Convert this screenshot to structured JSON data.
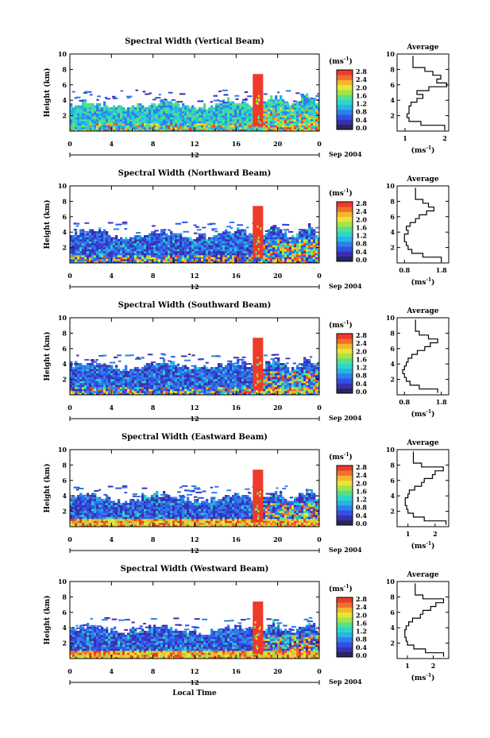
{
  "colors": {
    "background": "#ffffff",
    "axis": "#000000",
    "colorbar": [
      "#27285a",
      "#3a2fb0",
      "#3050e8",
      "#2f7fe8",
      "#27b4e6",
      "#2fd6c6",
      "#56e08a",
      "#a6e34a",
      "#e6e636",
      "#f5b62c",
      "#f2702a",
      "#ee3a2a"
    ]
  },
  "chart_data": [
    {
      "type": "heatmap",
      "title": "Spectral Width (Vertical Beam)",
      "ylabel": "Height (km)",
      "xlabel": "",
      "x_ticks": [
        "0",
        "4",
        "8",
        "12",
        "16",
        "20",
        "0"
      ],
      "y_ticks": [
        "10",
        "8",
        "6",
        "4",
        "2"
      ],
      "xlim": [
        0,
        24
      ],
      "ylim": [
        0,
        10
      ],
      "date_marker": "12",
      "date_label": "Sep 2004",
      "colorbar_unit": "(ms",
      "colorbar_unit_exp": "-1",
      "colorbar_unit_close": ")",
      "colorbar_ticks": [
        "2.8",
        "2.4",
        "2.0",
        "1.6",
        "1.2",
        "0.8",
        "0.4",
        "0.0"
      ],
      "colorbar_range": [
        0,
        2.8
      ],
      "profile": {
        "title": "Average",
        "x_ticks": [
          "1",
          "2"
        ],
        "xlim": [
          0.8,
          2.1
        ],
        "y_ticks": [
          "10",
          "8",
          "6",
          "4",
          "2"
        ],
        "xlabel": "(ms",
        "xlabel_exp": "-1",
        "xlabel_close": ")",
        "heights": [
          0.5,
          1.0,
          1.5,
          2.0,
          2.5,
          3.0,
          3.5,
          4.0,
          4.5,
          5.0,
          5.5,
          6.0,
          6.5,
          7.0,
          7.5,
          8.0,
          8.5,
          9.0,
          9.5
        ],
        "values": [
          2.0,
          1.4,
          1.1,
          1.05,
          1.1,
          1.1,
          1.15,
          1.3,
          1.45,
          1.3,
          1.6,
          2.05,
          1.8,
          1.9,
          1.7,
          1.5,
          1.2,
          1.2,
          1.2
        ]
      }
    },
    {
      "type": "heatmap",
      "title": "Spectral Width (Northward Beam)",
      "ylabel": "Height (km)",
      "xlabel": "",
      "x_ticks": [
        "0",
        "4",
        "8",
        "12",
        "16",
        "20",
        "0"
      ],
      "y_ticks": [
        "10",
        "8",
        "6",
        "4",
        "2"
      ],
      "xlim": [
        0,
        24
      ],
      "ylim": [
        0,
        10
      ],
      "date_marker": "12",
      "date_label": "Sep 2004",
      "colorbar_unit": "(ms",
      "colorbar_unit_exp": "-1",
      "colorbar_unit_close": ")",
      "colorbar_ticks": [
        "2.8",
        "2.4",
        "2.0",
        "1.6",
        "1.2",
        "0.8",
        "0.4",
        "0.0"
      ],
      "colorbar_range": [
        0,
        2.8
      ],
      "profile": {
        "title": "Average",
        "x_ticks": [
          "0.8",
          "1.8"
        ],
        "xlim": [
          0.6,
          2.0
        ],
        "y_ticks": [
          "10",
          "8",
          "6",
          "4",
          "2"
        ],
        "xlabel": "(ms",
        "xlabel_exp": "-1",
        "xlabel_close": ")",
        "heights": [
          0.5,
          1.0,
          1.5,
          2.0,
          2.5,
          3.0,
          3.5,
          4.0,
          4.5,
          5.0,
          5.5,
          6.0,
          6.5,
          7.0,
          7.5,
          8.0,
          8.5,
          9.0,
          9.5
        ],
        "values": [
          1.8,
          1.3,
          1.0,
          0.9,
          0.85,
          0.8,
          0.8,
          0.9,
          0.85,
          0.95,
          1.1,
          1.2,
          1.4,
          1.6,
          1.45,
          1.3,
          1.1,
          1.1,
          1.1
        ]
      }
    },
    {
      "type": "heatmap",
      "title": "Spectral Width (Southward Beam)",
      "ylabel": "Height (km)",
      "xlabel": "",
      "x_ticks": [
        "0",
        "4",
        "8",
        "12",
        "16",
        "20",
        "0"
      ],
      "y_ticks": [
        "10",
        "8",
        "6",
        "4",
        "2"
      ],
      "xlim": [
        0,
        24
      ],
      "ylim": [
        0,
        10
      ],
      "date_marker": "12",
      "date_label": "Sep 2004",
      "colorbar_unit": "(ms",
      "colorbar_unit_exp": "-1",
      "colorbar_unit_close": ")",
      "colorbar_ticks": [
        "2.8",
        "2.4",
        "2.0",
        "1.6",
        "1.2",
        "0.8",
        "0.4",
        "0.0"
      ],
      "colorbar_range": [
        0,
        2.8
      ],
      "profile": {
        "title": "Average",
        "x_ticks": [
          "0.8",
          "1.8"
        ],
        "xlim": [
          0.6,
          2.0
        ],
        "y_ticks": [
          "10",
          "8",
          "6",
          "4",
          "2"
        ],
        "xlabel": "(ms",
        "xlabel_exp": "-1",
        "xlabel_close": ")",
        "heights": [
          0.5,
          1.0,
          1.5,
          2.0,
          2.5,
          3.0,
          3.5,
          4.0,
          4.5,
          5.0,
          5.5,
          6.0,
          6.5,
          7.0,
          7.5,
          8.0,
          8.5,
          9.0,
          9.5
        ],
        "values": [
          1.7,
          1.2,
          0.95,
          0.85,
          0.8,
          0.75,
          0.8,
          0.85,
          0.9,
          1.0,
          1.15,
          1.35,
          1.5,
          1.7,
          1.45,
          1.2,
          1.1,
          1.1,
          1.1
        ]
      }
    },
    {
      "type": "heatmap",
      "title": "Spectral Width (Eastward Beam)",
      "ylabel": "Height (km)",
      "xlabel": "",
      "x_ticks": [
        "0",
        "4",
        "8",
        "12",
        "16",
        "20",
        "0"
      ],
      "y_ticks": [
        "10",
        "8",
        "6",
        "4",
        "2"
      ],
      "xlim": [
        0,
        24
      ],
      "ylim": [
        0,
        10
      ],
      "date_marker": "12",
      "date_label": "Sep 2004",
      "colorbar_unit": "(ms",
      "colorbar_unit_exp": "-1",
      "colorbar_unit_close": ")",
      "colorbar_ticks": [
        "2.8",
        "2.4",
        "2.0",
        "1.6",
        "1.2",
        "0.8",
        "0.4",
        "0.0"
      ],
      "colorbar_range": [
        0,
        2.8
      ],
      "profile": {
        "title": "Average",
        "x_ticks": [
          "1",
          "2"
        ],
        "xlim": [
          0.6,
          2.5
        ],
        "y_ticks": [
          "10",
          "8",
          "6",
          "4",
          "2"
        ],
        "xlabel": "(ms",
        "xlabel_exp": "-1",
        "xlabel_close": ")",
        "heights": [
          0.5,
          1.0,
          1.5,
          2.0,
          2.5,
          3.0,
          3.5,
          4.0,
          4.5,
          5.0,
          5.5,
          6.0,
          6.5,
          7.0,
          7.5,
          8.0,
          8.5,
          9.0,
          9.5
        ],
        "values": [
          2.4,
          1.6,
          1.2,
          1.0,
          0.95,
          0.9,
          0.9,
          1.0,
          1.05,
          1.25,
          1.5,
          1.6,
          1.9,
          2.0,
          2.3,
          1.5,
          1.2,
          1.2,
          1.2
        ]
      }
    },
    {
      "type": "heatmap",
      "title": "Spectral Width (Westward Beam)",
      "ylabel": "Height (km)",
      "xlabel": "Local Time",
      "x_ticks": [
        "0",
        "4",
        "8",
        "12",
        "16",
        "20",
        "0"
      ],
      "y_ticks": [
        "10",
        "8",
        "6",
        "4",
        "2"
      ],
      "xlim": [
        0,
        24
      ],
      "ylim": [
        0,
        10
      ],
      "date_marker": "12",
      "date_label": "Sep 2004",
      "colorbar_unit": "(ms",
      "colorbar_unit_exp": "-1",
      "colorbar_unit_close": ")",
      "colorbar_ticks": [
        "2.8",
        "2.4",
        "2.0",
        "1.6",
        "1.2",
        "0.8",
        "0.4",
        "0.0"
      ],
      "colorbar_range": [
        0,
        2.8
      ],
      "profile": {
        "title": "Average",
        "x_ticks": [
          "1",
          "2"
        ],
        "xlim": [
          0.6,
          2.6
        ],
        "y_ticks": [
          "10",
          "8",
          "6",
          "4",
          "2"
        ],
        "xlabel": "(ms",
        "xlabel_exp": "-1",
        "xlabel_close": ")",
        "heights": [
          0.5,
          1.0,
          1.5,
          2.0,
          2.5,
          3.0,
          3.5,
          4.0,
          4.5,
          5.0,
          5.5,
          6.0,
          6.5,
          7.0,
          7.5,
          8.0,
          8.5,
          9.0,
          9.5
        ],
        "values": [
          2.4,
          1.7,
          1.25,
          1.0,
          0.95,
          0.9,
          0.9,
          0.95,
          1.05,
          1.2,
          1.5,
          1.6,
          1.9,
          2.1,
          2.4,
          1.6,
          1.3,
          1.3,
          1.3
        ]
      }
    }
  ]
}
